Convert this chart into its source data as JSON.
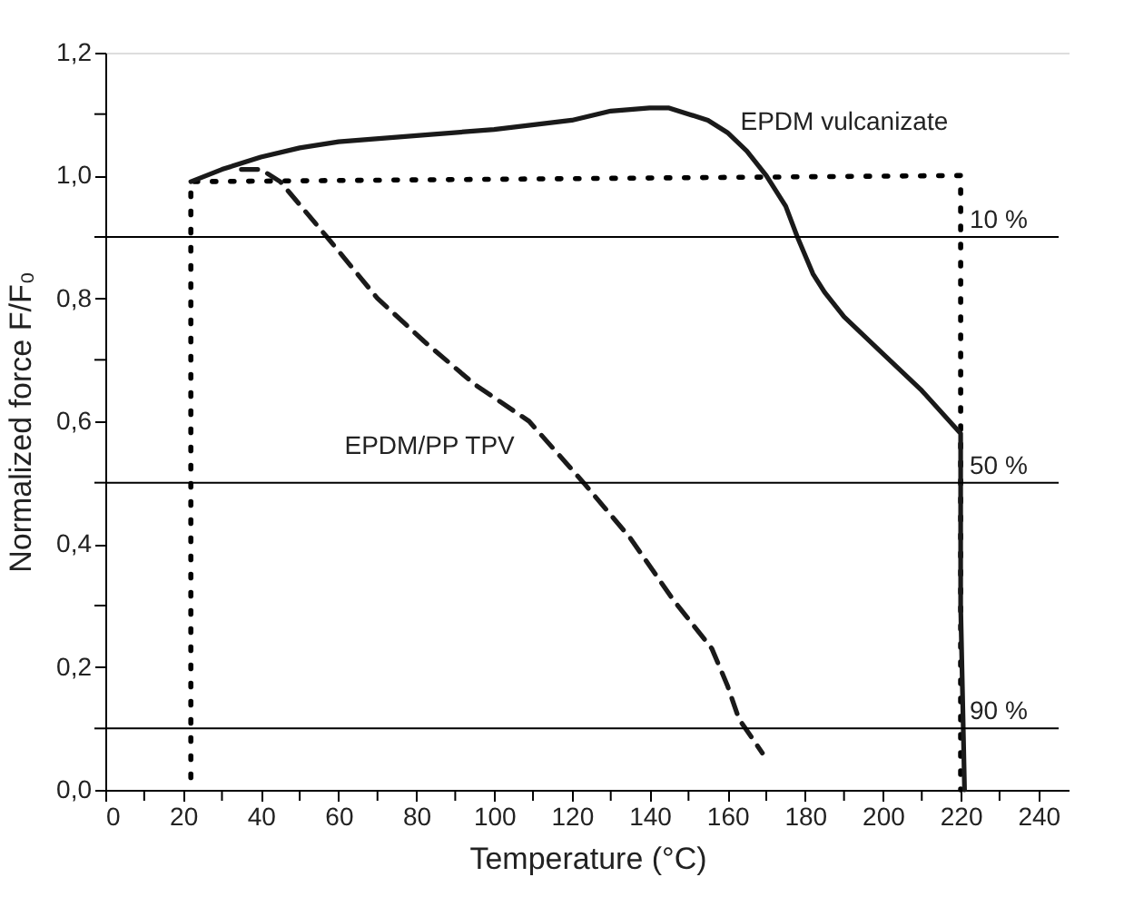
{
  "chart_data": {
    "type": "line",
    "xlabel": "Temperature (°C)",
    "ylabel": "Normalized force F/F₀",
    "xlim": [
      0,
      248
    ],
    "ylim": [
      0,
      1.2
    ],
    "xticks": [
      0,
      {
        "value": 10,
        "label": null
      },
      20,
      {
        "value": 30,
        "label": null
      },
      40,
      {
        "value": 50,
        "label": null
      },
      60,
      {
        "value": 70,
        "label": null
      },
      80,
      {
        "value": 90,
        "label": null
      },
      100,
      {
        "value": 110,
        "label": null
      },
      120,
      {
        "value": 130,
        "label": null
      },
      140,
      {
        "value": 150,
        "label": null
      },
      160,
      {
        "value": 170,
        "label": null
      },
      180,
      {
        "value": 190,
        "label": null
      },
      200,
      {
        "value": 210,
        "label": null
      },
      220,
      {
        "value": 230,
        "label": null
      },
      240
    ],
    "yticks": [
      {
        "value": 0,
        "label": "0,0"
      },
      {
        "value": 0.1,
        "label": null
      },
      {
        "value": 0.2,
        "label": "0,2"
      },
      {
        "value": 0.3,
        "label": null
      },
      {
        "value": 0.4,
        "label": "0,4"
      },
      {
        "value": 0.5,
        "label": null
      },
      {
        "value": 0.6,
        "label": "0,6"
      },
      {
        "value": 0.7,
        "label": null
      },
      {
        "value": 0.8,
        "label": "0,8"
      },
      {
        "value": 0.9,
        "label": null
      },
      {
        "value": 1.0,
        "label": "1,0"
      },
      {
        "value": 1.1,
        "label": null
      },
      {
        "value": 1.2,
        "label": "1,2"
      }
    ],
    "grid": false,
    "legend": false,
    "marker": "none",
    "series": [
      {
        "color": "#000000",
        "line_style": "dotted",
        "x": [
          22,
          22,
          220,
          220
        ],
        "values": [
          0.02,
          0.99,
          1.0,
          0.0
        ]
      },
      {
        "name": "EPDM vulcanizate",
        "color": "#1a1a1a",
        "line_style": "solid",
        "x": [
          22,
          30,
          40,
          50,
          60,
          80,
          100,
          120,
          130,
          140,
          145,
          150,
          155,
          160,
          165,
          170,
          175,
          178,
          182,
          185,
          190,
          200,
          210,
          220,
          220,
          221
        ],
        "values": [
          0.99,
          1.01,
          1.03,
          1.045,
          1.055,
          1.065,
          1.075,
          1.09,
          1.105,
          1.11,
          1.11,
          1.1,
          1.09,
          1.07,
          1.04,
          1.0,
          0.95,
          0.9,
          0.84,
          0.81,
          0.77,
          0.71,
          0.65,
          0.58,
          0.3,
          0.0
        ]
      },
      {
        "name": "EPDM/PP TPV",
        "color": "#1a1a1a",
        "line_style": "dashed",
        "x": [
          35,
          40,
          45,
          57,
          70,
          82,
          95,
          109,
          123,
          135,
          146,
          156,
          160,
          163,
          169
        ],
        "values": [
          1.01,
          1.01,
          0.99,
          0.9,
          0.8,
          0.73,
          0.66,
          0.6,
          0.5,
          0.41,
          0.31,
          0.23,
          0.17,
          0.115,
          0.06
        ]
      }
    ],
    "ref_lines": [
      {
        "axis": "y",
        "value": 0.9
      },
      {
        "axis": "y",
        "value": 0.5
      },
      {
        "axis": "y",
        "value": 0.1
      }
    ],
    "annotations": [
      "10 %",
      "50 %",
      "90 %"
    ]
  }
}
